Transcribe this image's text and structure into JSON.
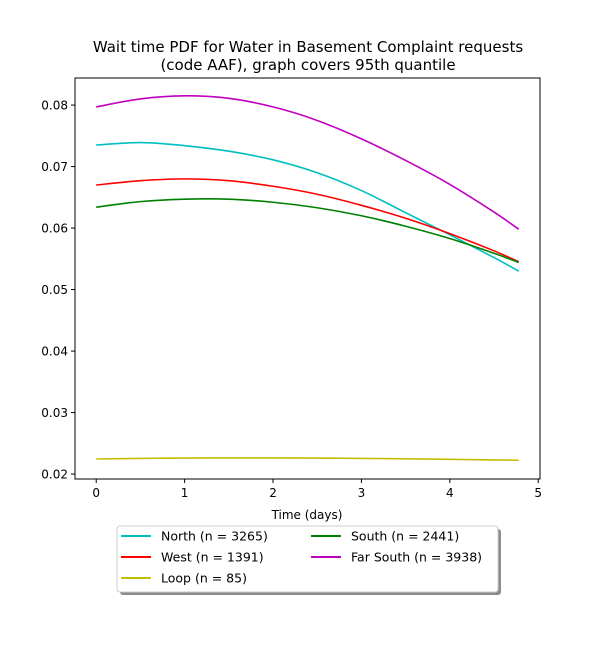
{
  "chart_data": {
    "type": "line",
    "title_lines": [
      "Wait time PDF for Water in Basement Complaint  requests",
      "(code AAF), graph covers 95th quantile"
    ],
    "xlabel": "Time (days)",
    "ylabel": "",
    "xlim": [
      -0.24,
      5.02
    ],
    "ylim": [
      0.0192,
      0.0844
    ],
    "xticks": [
      0,
      1,
      2,
      3,
      4,
      5
    ],
    "yticks": [
      0.02,
      0.03,
      0.04,
      0.05,
      0.06,
      0.07,
      0.08
    ],
    "ytick_labels": [
      "0.02",
      "0.03",
      "0.04",
      "0.05",
      "0.06",
      "0.07",
      "0.08"
    ],
    "grid": false,
    "legend_placement": "below plot, two columns, shadowed box",
    "series": [
      {
        "name": "North (n = 3265)",
        "color": "#00bfbf",
        "x": [
          0,
          0.5,
          1,
          1.5,
          2,
          2.5,
          3,
          3.5,
          4,
          4.5,
          4.78
        ],
        "y": [
          0.0735,
          0.0739,
          0.0734,
          0.0725,
          0.0711,
          0.069,
          0.0661,
          0.0625,
          0.0589,
          0.0552,
          0.053
        ]
      },
      {
        "name": "West (n = 1391)",
        "color": "#ff0000",
        "x": [
          0,
          0.5,
          1,
          1.5,
          2,
          2.5,
          3,
          3.5,
          4,
          4.5,
          4.78
        ],
        "y": [
          0.067,
          0.0677,
          0.068,
          0.0677,
          0.0668,
          0.0655,
          0.0637,
          0.0616,
          0.0591,
          0.0563,
          0.0545
        ]
      },
      {
        "name": "Loop (n = 85)",
        "color": "#bfbf00",
        "x": [
          0,
          0.5,
          1,
          1.5,
          2,
          2.5,
          3,
          3.5,
          4,
          4.5,
          4.78
        ],
        "y": [
          0.02245,
          0.02255,
          0.0226,
          0.02263,
          0.02263,
          0.0226,
          0.02255,
          0.02248,
          0.0224,
          0.0223,
          0.02225
        ]
      },
      {
        "name": "South (n = 2441)",
        "color": "#008000",
        "x": [
          0,
          0.5,
          1,
          1.5,
          2,
          2.5,
          3,
          3.5,
          4,
          4.5,
          4.78
        ],
        "y": [
          0.0634,
          0.0643,
          0.0647,
          0.0647,
          0.0642,
          0.0633,
          0.062,
          0.0603,
          0.0583,
          0.0559,
          0.0544
        ]
      },
      {
        "name": "Far South (n = 3938)",
        "color": "#bf00bf",
        "x": [
          0,
          0.5,
          1,
          1.5,
          2,
          2.5,
          3,
          3.5,
          4,
          4.5,
          4.78
        ],
        "y": [
          0.0797,
          0.081,
          0.0815,
          0.0811,
          0.0797,
          0.0775,
          0.0745,
          0.071,
          0.0671,
          0.0626,
          0.0598
        ]
      }
    ]
  }
}
